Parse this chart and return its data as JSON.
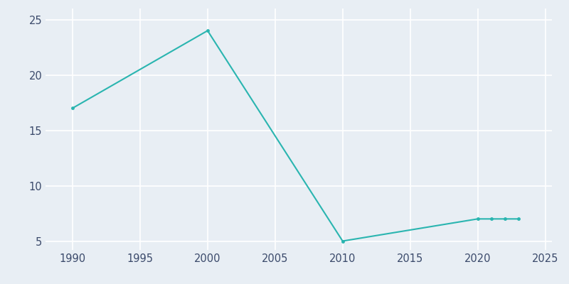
{
  "years": [
    1990,
    2000,
    2010,
    2020,
    2021,
    2022,
    2023
  ],
  "population": [
    17,
    24,
    5,
    7,
    7,
    7,
    7
  ],
  "line_color": "#2AB5B0",
  "marker": "o",
  "marker_size": 2.5,
  "linewidth": 1.5,
  "background_color": "#E8EEF4",
  "grid_color": "#FFFFFF",
  "xlim": [
    1988,
    2025.5
  ],
  "ylim": [
    4.2,
    26
  ],
  "yticks": [
    5,
    10,
    15,
    20,
    25
  ],
  "xticks": [
    1990,
    1995,
    2000,
    2005,
    2010,
    2015,
    2020,
    2025
  ],
  "tick_label_color": "#3B4A6B",
  "tick_fontsize": 10.5
}
